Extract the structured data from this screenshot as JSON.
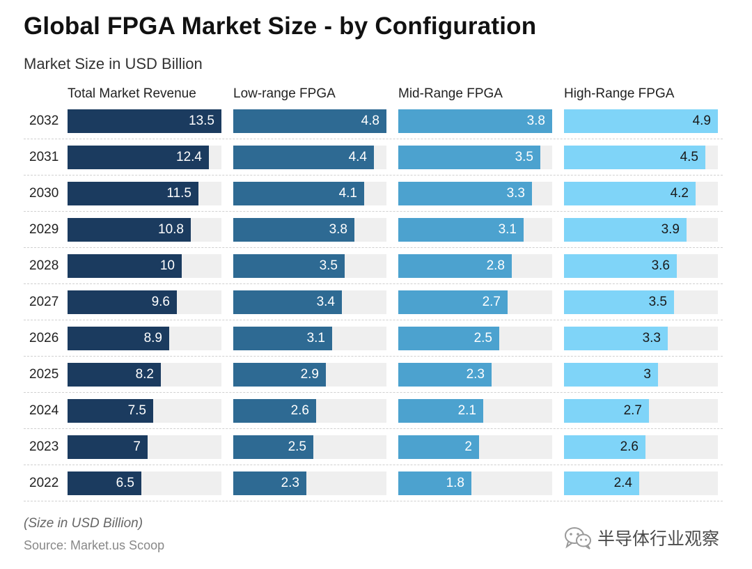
{
  "title": "Global FPGA Market Size - by Configuration",
  "subtitle": "Market Size in USD Billion",
  "note": "(Size in USD Billion)",
  "source": "Source: Market.us Scoop",
  "watermark": "半导体行业观察",
  "colors": {
    "total": "#1b3b5f",
    "low": "#2e6a93",
    "mid": "#4ca2cf",
    "high": "#7fd4f8",
    "track": "#efefef"
  },
  "chart_data": {
    "type": "bar",
    "orientation": "horizontal",
    "title": "Global FPGA Market Size - by Configuration",
    "subtitle": "Market Size in USD Billion",
    "categories": [
      "2032",
      "2031",
      "2030",
      "2029",
      "2028",
      "2027",
      "2026",
      "2025",
      "2024",
      "2023",
      "2022"
    ],
    "series": [
      {
        "name": "Total Market Revenue",
        "key": "total",
        "max": 13.5,
        "values": [
          13.5,
          12.4,
          11.5,
          10.8,
          10,
          9.6,
          8.9,
          8.2,
          7.5,
          7,
          6.5
        ]
      },
      {
        "name": "Low-range FPGA",
        "key": "low",
        "max": 4.8,
        "values": [
          4.8,
          4.4,
          4.1,
          3.8,
          3.5,
          3.4,
          3.1,
          2.9,
          2.6,
          2.5,
          2.3
        ]
      },
      {
        "name": "Mid-Range FPGA",
        "key": "mid",
        "max": 3.8,
        "values": [
          3.8,
          3.5,
          3.3,
          3.1,
          2.8,
          2.7,
          2.5,
          2.3,
          2.1,
          2,
          1.8
        ]
      },
      {
        "name": "High-Range FPGA",
        "key": "high",
        "max": 4.9,
        "values": [
          4.9,
          4.5,
          4.2,
          3.9,
          3.6,
          3.5,
          3.3,
          3,
          2.7,
          2.6,
          2.4
        ]
      }
    ]
  }
}
